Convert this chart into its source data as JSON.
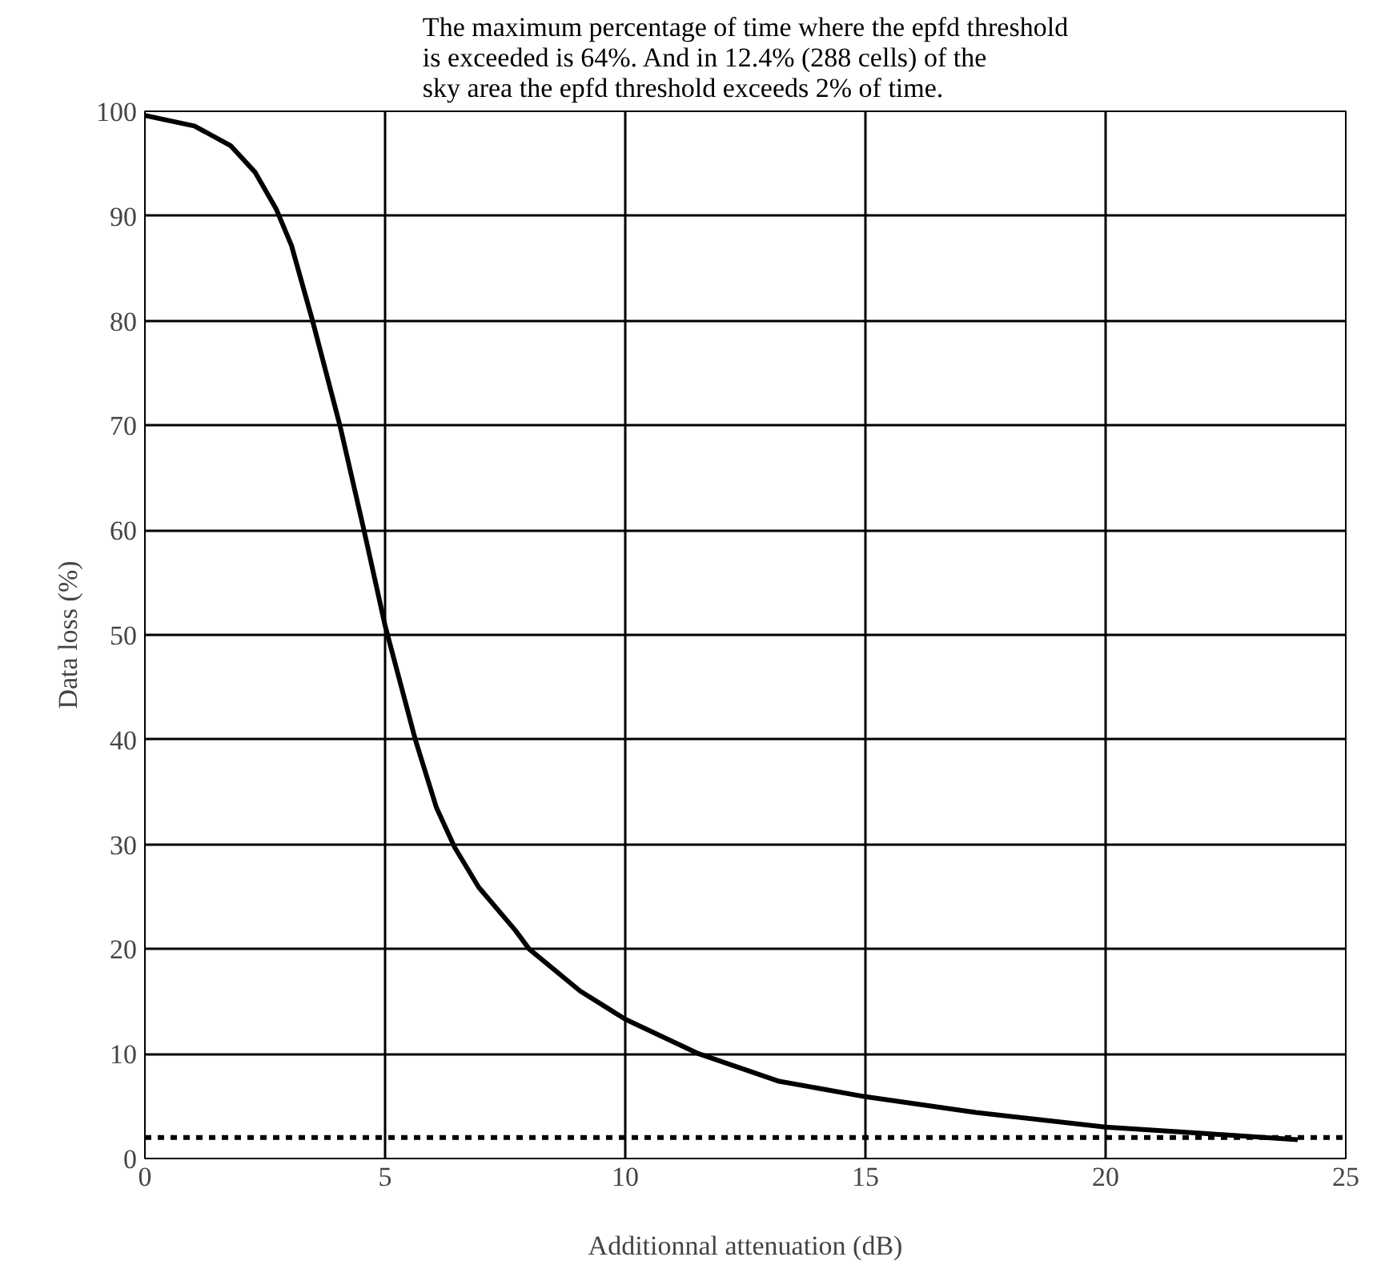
{
  "chart_data": {
    "type": "line",
    "title": "The maximum percentage of time where the epfd threshold\nis exceeded is 64%. And in 12.4% (288 cells) of the\nsky area the epfd threshold exceeds 2% of time.",
    "xlabel": "Additionnal attenuation (dB)",
    "ylabel": "Data loss (%)",
    "series": [
      {
        "color": "#000000",
        "x": [
          0,
          1.03,
          1.79,
          2.29,
          2.73,
          3.05,
          3.49,
          4.06,
          4.56,
          5,
          5.63,
          6.07,
          6.45,
          6.95,
          7.71,
          8.0,
          9.06,
          10,
          11.53,
          13.18,
          15,
          17.3,
          20,
          22.0,
          24
        ],
        "values": [
          99.6,
          98.6,
          96.7,
          94.2,
          90.7,
          87.2,
          80,
          70,
          60,
          50.9,
          40,
          33.5,
          29.7,
          25.9,
          21.8,
          20,
          16.0,
          13.3,
          10,
          7.4,
          5.9,
          4.4,
          3.0,
          2.4,
          1.8
        ]
      }
    ],
    "ref_lines": [
      {
        "axis": "y",
        "value": 2,
        "color": "#000000",
        "line_style": "dotted"
      }
    ],
    "xlim": [
      0,
      25
    ],
    "xticks": [
      0,
      5,
      10,
      15,
      20,
      25
    ],
    "ylim": [
      0,
      100
    ],
    "yticks": [
      0,
      10,
      20,
      30,
      40,
      50,
      60,
      70,
      80,
      90,
      100
    ],
    "grid": true,
    "marker": "none",
    "line_style": "solid"
  }
}
